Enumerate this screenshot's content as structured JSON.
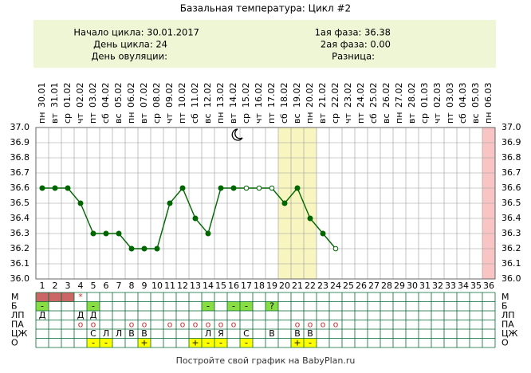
{
  "header": {
    "title": "Базальная температура: Цикл #2",
    "info_left": [
      "Начало цикла: 30.01.2017",
      "День цикла: 24",
      "День овуляции:"
    ],
    "info_right": [
      "1ая фаза: 36.38",
      "2ая фаза: 0.00",
      "Разница:"
    ]
  },
  "chart_data": {
    "type": "line",
    "weekdays": [
      "пн",
      "вт",
      "ср",
      "чт",
      "пт",
      "сб",
      "вс",
      "пн",
      "вт",
      "ср",
      "чт",
      "пт",
      "сб",
      "вс",
      "пн",
      "вт",
      "ср",
      "чт",
      "пт",
      "сб",
      "вс",
      "пн",
      "вт",
      "ср",
      "чт",
      "пт",
      "сб",
      "вс",
      "пн",
      "вт",
      "ср",
      "чт",
      "пт",
      "сб",
      "вс",
      "пн"
    ],
    "dates": [
      "30.01",
      "31.01",
      "01.02",
      "02.02",
      "03.02",
      "04.02",
      "05.02",
      "06.02",
      "07.02",
      "08.02",
      "09.02",
      "10.02",
      "11.02",
      "12.02",
      "13.02",
      "14.02",
      "15.02",
      "16.02",
      "17.02",
      "18.02",
      "19.02",
      "20.02",
      "21.02",
      "22.02",
      "23.02",
      "24.02",
      "25.02",
      "26.02",
      "27.02",
      "28.02",
      "01.03",
      "02.03",
      "03.03",
      "04.03",
      "05.03",
      "06.03"
    ],
    "categories": [
      1,
      2,
      3,
      4,
      5,
      6,
      7,
      8,
      9,
      10,
      11,
      12,
      13,
      14,
      15,
      16,
      17,
      18,
      19,
      20,
      21,
      22,
      23,
      24,
      25,
      26,
      27,
      28,
      29,
      30,
      31,
      32,
      33,
      34,
      35,
      36
    ],
    "series": [
      {
        "color": "#006600",
        "values": [
          36.6,
          36.6,
          36.6,
          36.5,
          36.3,
          36.3,
          36.3,
          36.2,
          36.2,
          36.2,
          36.5,
          36.6,
          36.4,
          36.3,
          36.6,
          36.6,
          36.6,
          36.6,
          36.6,
          36.5,
          36.6,
          36.4,
          36.3,
          36.2,
          null,
          null,
          null,
          null,
          null,
          null,
          null,
          null,
          null,
          null,
          null,
          null
        ],
        "point_styles": [
          "filled",
          "filled",
          "filled",
          "filled",
          "filled",
          "filled",
          "filled",
          "filled",
          "filled",
          "filled",
          "filled",
          "filled",
          "filled",
          "filled",
          "filled",
          "filled",
          "open",
          "open",
          "open",
          "filled",
          "filled",
          "filled",
          "filled",
          "open",
          null,
          null,
          null,
          null,
          null,
          null,
          null,
          null,
          null,
          null,
          null,
          null
        ]
      }
    ],
    "ylim": [
      36.0,
      37.0
    ],
    "yticks": [
      {
        "value": 36.0,
        "label": "36.0"
      },
      36.1,
      36.2,
      36.3,
      36.4,
      36.5,
      36.6,
      36.7,
      36.8,
      36.9,
      {
        "value": 37.0,
        "label": "37.0"
      }
    ],
    "grid": true,
    "highlight_bands": [
      {
        "from": 20,
        "to": 22,
        "color": "#f8f5c0"
      },
      {
        "from": 36,
        "to": 36,
        "color": "#f9c4c4"
      }
    ],
    "rows": [
      {
        "label": "М",
        "fill": "#cc6666",
        "marked": [
          1,
          2,
          3
        ],
        "cells": [
          [
            4,
            "*"
          ]
        ]
      },
      {
        "label": "Б",
        "fill": "#88dd44",
        "marked": [
          1,
          5,
          14,
          16,
          17,
          19
        ],
        "cells": [
          [
            1,
            "-"
          ],
          [
            5,
            "-"
          ],
          [
            14,
            "-"
          ],
          [
            16,
            "-"
          ],
          [
            17,
            "-"
          ],
          [
            19,
            "?"
          ]
        ]
      },
      {
        "label": "ЛП",
        "fill": "#88dd44",
        "marked": [],
        "cells": [
          [
            1,
            "Д"
          ],
          [
            4,
            "Д"
          ],
          [
            5,
            "Д"
          ]
        ]
      },
      {
        "label": "ПА",
        "fill": "#88dd44",
        "marked": [],
        "cells": [
          [
            4,
            "o"
          ],
          [
            5,
            "o"
          ],
          [
            8,
            "o"
          ],
          [
            9,
            "o"
          ],
          [
            11,
            "o"
          ],
          [
            12,
            "o"
          ],
          [
            13,
            "o"
          ],
          [
            14,
            "o"
          ],
          [
            15,
            "o"
          ],
          [
            16,
            "o"
          ],
          [
            21,
            "o"
          ],
          [
            22,
            "o"
          ],
          [
            23,
            "o"
          ],
          [
            24,
            "o"
          ]
        ]
      },
      {
        "label": "ЦЖ",
        "fill": "#88dd44",
        "marked": [],
        "cells": [
          [
            5,
            "С"
          ],
          [
            6,
            "Л"
          ],
          [
            7,
            "Л"
          ],
          [
            8,
            "В"
          ],
          [
            9,
            "В"
          ],
          [
            14,
            "Л"
          ],
          [
            15,
            "Я"
          ],
          [
            17,
            "С"
          ],
          [
            19,
            "В"
          ],
          [
            21,
            "В"
          ],
          [
            22,
            "В"
          ]
        ]
      },
      {
        "label": "О",
        "fill": "#ffff00",
        "marked": [
          5,
          6,
          9,
          13,
          14,
          15,
          17,
          21,
          22
        ],
        "cells": [
          [
            5,
            "-"
          ],
          [
            6,
            "-"
          ],
          [
            9,
            "+"
          ],
          [
            13,
            "+"
          ],
          [
            14,
            "-"
          ],
          [
            15,
            "-"
          ],
          [
            17,
            "-"
          ],
          [
            21,
            "+"
          ],
          [
            22,
            "-"
          ]
        ]
      }
    ]
  },
  "footer": "Постройте свой график на BabyPlan.ru"
}
